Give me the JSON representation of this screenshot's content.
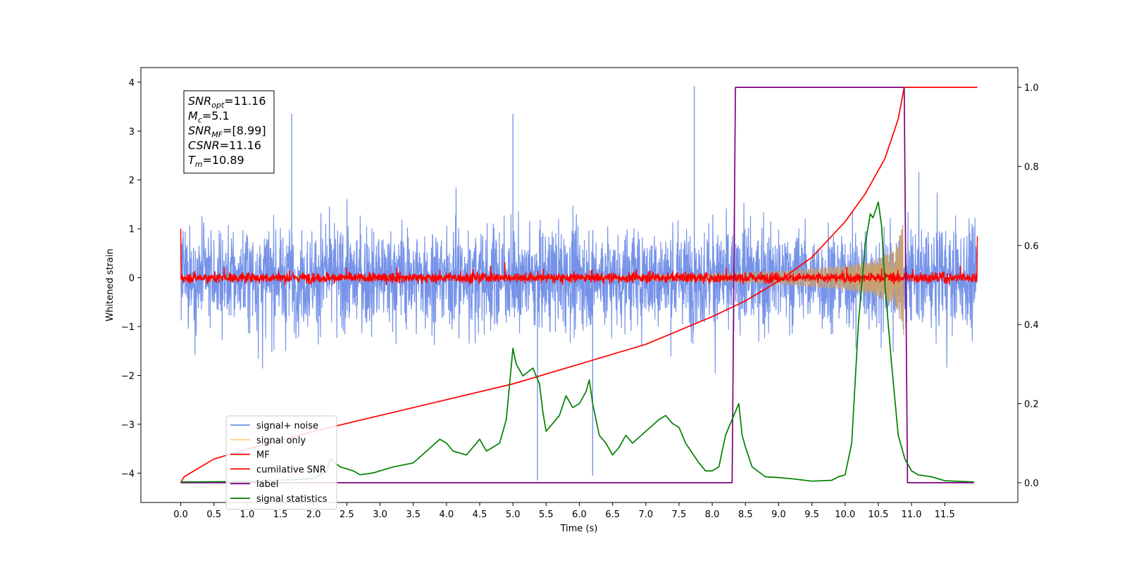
{
  "chart_data": {
    "type": "line",
    "title": "",
    "xlabel": "Time (s)",
    "ylabel": "Whitened strain",
    "y2label": "",
    "xlim": [
      -0.6,
      12.6
    ],
    "ylim": [
      -4.6,
      4.3
    ],
    "y2lim": [
      -0.05,
      1.05
    ],
    "xticks": [
      "0.0",
      "0.5",
      "1.0",
      "1.5",
      "2.0",
      "2.5",
      "3.0",
      "3.5",
      "4.0",
      "4.5",
      "5.0",
      "5.5",
      "6.0",
      "6.5",
      "7.0",
      "7.5",
      "8.0",
      "8.5",
      "9.0",
      "9.5",
      "10.0",
      "10.5",
      "11.0",
      "11.5"
    ],
    "yticks": [
      "4",
      "3",
      "2",
      "1",
      "0",
      "−1",
      "−2",
      "−3",
      "−4"
    ],
    "y2ticks": [
      "1.0",
      "0.8",
      "0.6",
      "0.4",
      "0.2",
      "0.0"
    ],
    "grid": false,
    "legend_position": "lower-left",
    "info_box": {
      "lines": [
        {
          "sym": "SNR",
          "sub": "opt",
          "val": "=11.16"
        },
        {
          "sym": "M",
          "sub": "c",
          "val": "=5.1"
        },
        {
          "sym": "SNR",
          "sub": "MF",
          "val": "=[8.99]"
        },
        {
          "sym": "CSNR",
          "sub": "",
          "val": "=11.16"
        },
        {
          "sym": "T",
          "sub": "m",
          "val": "=10.89"
        }
      ]
    },
    "series": [
      {
        "name": "signal+ noise",
        "axis": "left",
        "color": "#6f8de8",
        "kind": "noise",
        "x_range": [
          0,
          11.99
        ],
        "amplitude_envelope": [
          -3.3,
          3.9
        ],
        "spikes": [
          [
            5.37,
            -4.15
          ],
          [
            6.2,
            -4.05
          ],
          [
            7.73,
            3.92
          ],
          [
            1.67,
            3.35
          ],
          [
            5.0,
            3.35
          ]
        ]
      },
      {
        "name": "signal only",
        "axis": "left",
        "color": "#ffc875",
        "kind": "chirp",
        "x_range": [
          0,
          10.89
        ],
        "envelope": [
          [
            0,
            0.03
          ],
          [
            6.0,
            0.04
          ],
          [
            8.0,
            0.08
          ],
          [
            9.0,
            0.14
          ],
          [
            10.0,
            0.25
          ],
          [
            10.5,
            0.4
          ],
          [
            10.75,
            0.6
          ],
          [
            10.89,
            1.2
          ]
        ]
      },
      {
        "name": "MF",
        "axis": "left",
        "color": "#ff0000",
        "kind": "noise",
        "x_range": [
          0,
          11.99
        ],
        "amplitude_envelope": [
          -0.15,
          0.35
        ],
        "end_points": [
          [
            0,
            1.0
          ],
          [
            11.99,
            0.85
          ]
        ]
      },
      {
        "name": "cumilative SNR",
        "axis": "right",
        "color": "#ff0000",
        "kind": "line",
        "x": [
          0,
          0.05,
          0.5,
          1.0,
          2.0,
          3.0,
          4.0,
          5.0,
          6.0,
          7.0,
          8.0,
          8.5,
          9.0,
          9.5,
          10.0,
          10.3,
          10.6,
          10.8,
          10.89,
          11.99
        ],
        "y": [
          0.0,
          0.015,
          0.06,
          0.085,
          0.13,
          0.17,
          0.21,
          0.25,
          0.3,
          0.35,
          0.42,
          0.46,
          0.51,
          0.57,
          0.66,
          0.73,
          0.82,
          0.92,
          1.0,
          1.0
        ]
      },
      {
        "name": "label",
        "axis": "right",
        "color": "#800080",
        "kind": "line",
        "x": [
          0,
          8.3,
          8.35,
          10.89,
          10.94,
          11.94
        ],
        "y": [
          0,
          0,
          1,
          1,
          0,
          0
        ]
      },
      {
        "name": "signal statistics",
        "axis": "right",
        "color": "#008000",
        "kind": "line",
        "x": [
          0,
          1.0,
          2.0,
          2.2,
          2.25,
          2.4,
          2.6,
          2.7,
          2.9,
          3.0,
          3.2,
          3.5,
          3.7,
          3.9,
          4.0,
          4.1,
          4.3,
          4.5,
          4.6,
          4.8,
          4.9,
          5.0,
          5.05,
          5.15,
          5.3,
          5.4,
          5.45,
          5.5,
          5.6,
          5.7,
          5.8,
          5.9,
          6.0,
          6.1,
          6.15,
          6.2,
          6.3,
          6.4,
          6.5,
          6.6,
          6.7,
          6.8,
          7.0,
          7.2,
          7.3,
          7.4,
          7.5,
          7.6,
          7.8,
          7.9,
          8.0,
          8.1,
          8.2,
          8.3,
          8.4,
          8.45,
          8.5,
          8.6,
          8.8,
          9.0,
          9.2,
          9.5,
          9.8,
          9.9,
          10.0,
          10.1,
          10.15,
          10.2,
          10.3,
          10.38,
          10.42,
          10.46,
          10.5,
          10.55,
          10.6,
          10.7,
          10.8,
          10.9,
          11.0,
          11.1,
          11.3,
          11.5,
          11.94
        ],
        "y": [
          0.002,
          0.003,
          0.01,
          0.03,
          0.06,
          0.04,
          0.03,
          0.02,
          0.025,
          0.03,
          0.04,
          0.05,
          0.08,
          0.11,
          0.1,
          0.08,
          0.07,
          0.11,
          0.08,
          0.1,
          0.16,
          0.34,
          0.3,
          0.27,
          0.29,
          0.25,
          0.18,
          0.13,
          0.15,
          0.17,
          0.22,
          0.19,
          0.2,
          0.23,
          0.26,
          0.2,
          0.12,
          0.1,
          0.07,
          0.09,
          0.12,
          0.1,
          0.13,
          0.16,
          0.17,
          0.15,
          0.14,
          0.1,
          0.05,
          0.03,
          0.03,
          0.04,
          0.12,
          0.16,
          0.2,
          0.12,
          0.09,
          0.04,
          0.015,
          0.013,
          0.01,
          0.004,
          0.006,
          0.015,
          0.02,
          0.1,
          0.25,
          0.4,
          0.6,
          0.68,
          0.67,
          0.69,
          0.71,
          0.65,
          0.5,
          0.3,
          0.12,
          0.06,
          0.03,
          0.02,
          0.015,
          0.005,
          0.002
        ]
      }
    ]
  }
}
